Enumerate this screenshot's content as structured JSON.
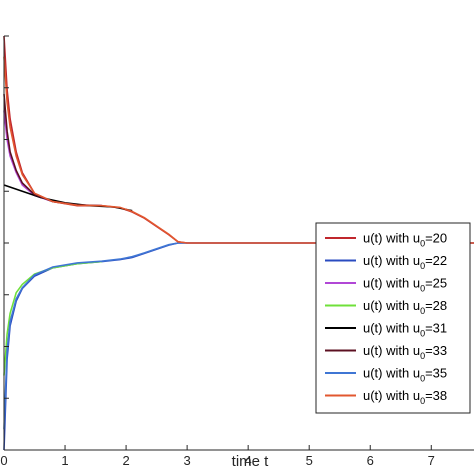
{
  "chart_data": {
    "type": "line",
    "title": "",
    "xlabel": "time t",
    "ylabel": "",
    "xlim": [
      0,
      7.7
    ],
    "ylim": [
      0,
      1
    ],
    "x_ticks": [
      "0",
      "1",
      "2",
      "3",
      "4",
      "5",
      "6",
      "7"
    ],
    "y_ticks_show_labels": false,
    "grid": false,
    "legend_position": "right",
    "series": [
      {
        "name": "u(t) with u",
        "sub": "0",
        "value": "=20",
        "color": "#c0272d",
        "x": [
          0,
          0.05,
          0.1,
          0.2,
          0.3,
          0.5,
          0.8,
          1.2,
          1.6,
          1.9,
          2.1,
          2.3,
          2.5,
          2.7,
          2.85,
          3,
          4,
          5,
          6,
          7,
          7.7
        ],
        "y": [
          1.0,
          0.87,
          0.8,
          0.72,
          0.67,
          0.62,
          0.6,
          0.59,
          0.59,
          0.585,
          0.575,
          0.56,
          0.54,
          0.52,
          0.503,
          0.5,
          0.5,
          0.5,
          0.5,
          0.5,
          0.5
        ]
      },
      {
        "name": "u(t) with u",
        "sub": "0",
        "value": "=22",
        "color": "#2a4bc0",
        "x": [
          0,
          0.05,
          0.1,
          0.2,
          0.3,
          0.5,
          0.8,
          1.2,
          1.6,
          1.9,
          2.1,
          2.3,
          2.5,
          2.7,
          2.85,
          3,
          4,
          5,
          6,
          7,
          7.7
        ],
        "y": [
          0.0,
          0.22,
          0.3,
          0.36,
          0.39,
          0.42,
          0.44,
          0.45,
          0.455,
          0.46,
          0.465,
          0.475,
          0.485,
          0.495,
          0.5,
          0.5,
          0.5,
          0.5,
          0.5,
          0.5,
          0.5
        ]
      },
      {
        "name": "u(t) with u",
        "sub": "0",
        "value": "=25",
        "color": "#b147d6",
        "x": [
          0,
          0.05,
          0.1,
          0.2,
          0.3,
          0.5,
          0.8,
          1.2,
          1.6
        ],
        "y": [
          0.82,
          0.75,
          0.71,
          0.67,
          0.64,
          0.615,
          0.6,
          0.592,
          0.59
        ]
      },
      {
        "name": "u(t) with u",
        "sub": "0",
        "value": "=28",
        "color": "#6fe03a",
        "x": [
          0,
          0.05,
          0.1,
          0.2,
          0.3,
          0.5,
          0.8,
          1.2,
          1.6
        ],
        "y": [
          0.18,
          0.28,
          0.33,
          0.38,
          0.4,
          0.425,
          0.44,
          0.45,
          0.455
        ]
      },
      {
        "name": "u(t) with u",
        "sub": "0",
        "value": "=31",
        "color": "#000000",
        "x": [
          0,
          0.3,
          0.6,
          1.0,
          1.4,
          1.8,
          2.1
        ],
        "y": [
          0.64,
          0.625,
          0.61,
          0.597,
          0.59,
          0.587,
          0.578
        ]
      },
      {
        "name": "u(t) with u",
        "sub": "0",
        "value": "=33",
        "color": "#5c1022",
        "x": [
          0,
          0.05,
          0.1,
          0.2,
          0.3,
          0.5,
          0.8,
          1.2,
          1.6
        ],
        "y": [
          0.86,
          0.77,
          0.72,
          0.675,
          0.645,
          0.617,
          0.6,
          0.592,
          0.59
        ]
      },
      {
        "name": "u(t) with u",
        "sub": "0",
        "value": "=35",
        "color": "#3f76d4",
        "x": [
          0,
          0.05,
          0.1,
          0.2,
          0.3,
          0.5,
          0.8,
          1.2,
          1.6,
          1.9,
          2.1,
          2.3,
          2.5,
          2.7,
          2.85,
          3
        ],
        "y": [
          0.05,
          0.24,
          0.31,
          0.365,
          0.392,
          0.423,
          0.442,
          0.452,
          0.456,
          0.461,
          0.467,
          0.476,
          0.486,
          0.496,
          0.5,
          0.5
        ]
      },
      {
        "name": "u(t) with u",
        "sub": "0",
        "value": "=38",
        "color": "#e2572f",
        "x": [
          0,
          0.05,
          0.1,
          0.2,
          0.3,
          0.5,
          0.8,
          1.2,
          1.6,
          1.9,
          2.1,
          2.3,
          2.5,
          2.7,
          2.85,
          3,
          4,
          5,
          6,
          7,
          7.7
        ],
        "y": [
          0.95,
          0.84,
          0.78,
          0.71,
          0.665,
          0.62,
          0.6,
          0.591,
          0.59,
          0.586,
          0.576,
          0.561,
          0.541,
          0.521,
          0.503,
          0.5,
          0.5,
          0.5,
          0.5,
          0.5,
          0.5
        ]
      }
    ]
  }
}
